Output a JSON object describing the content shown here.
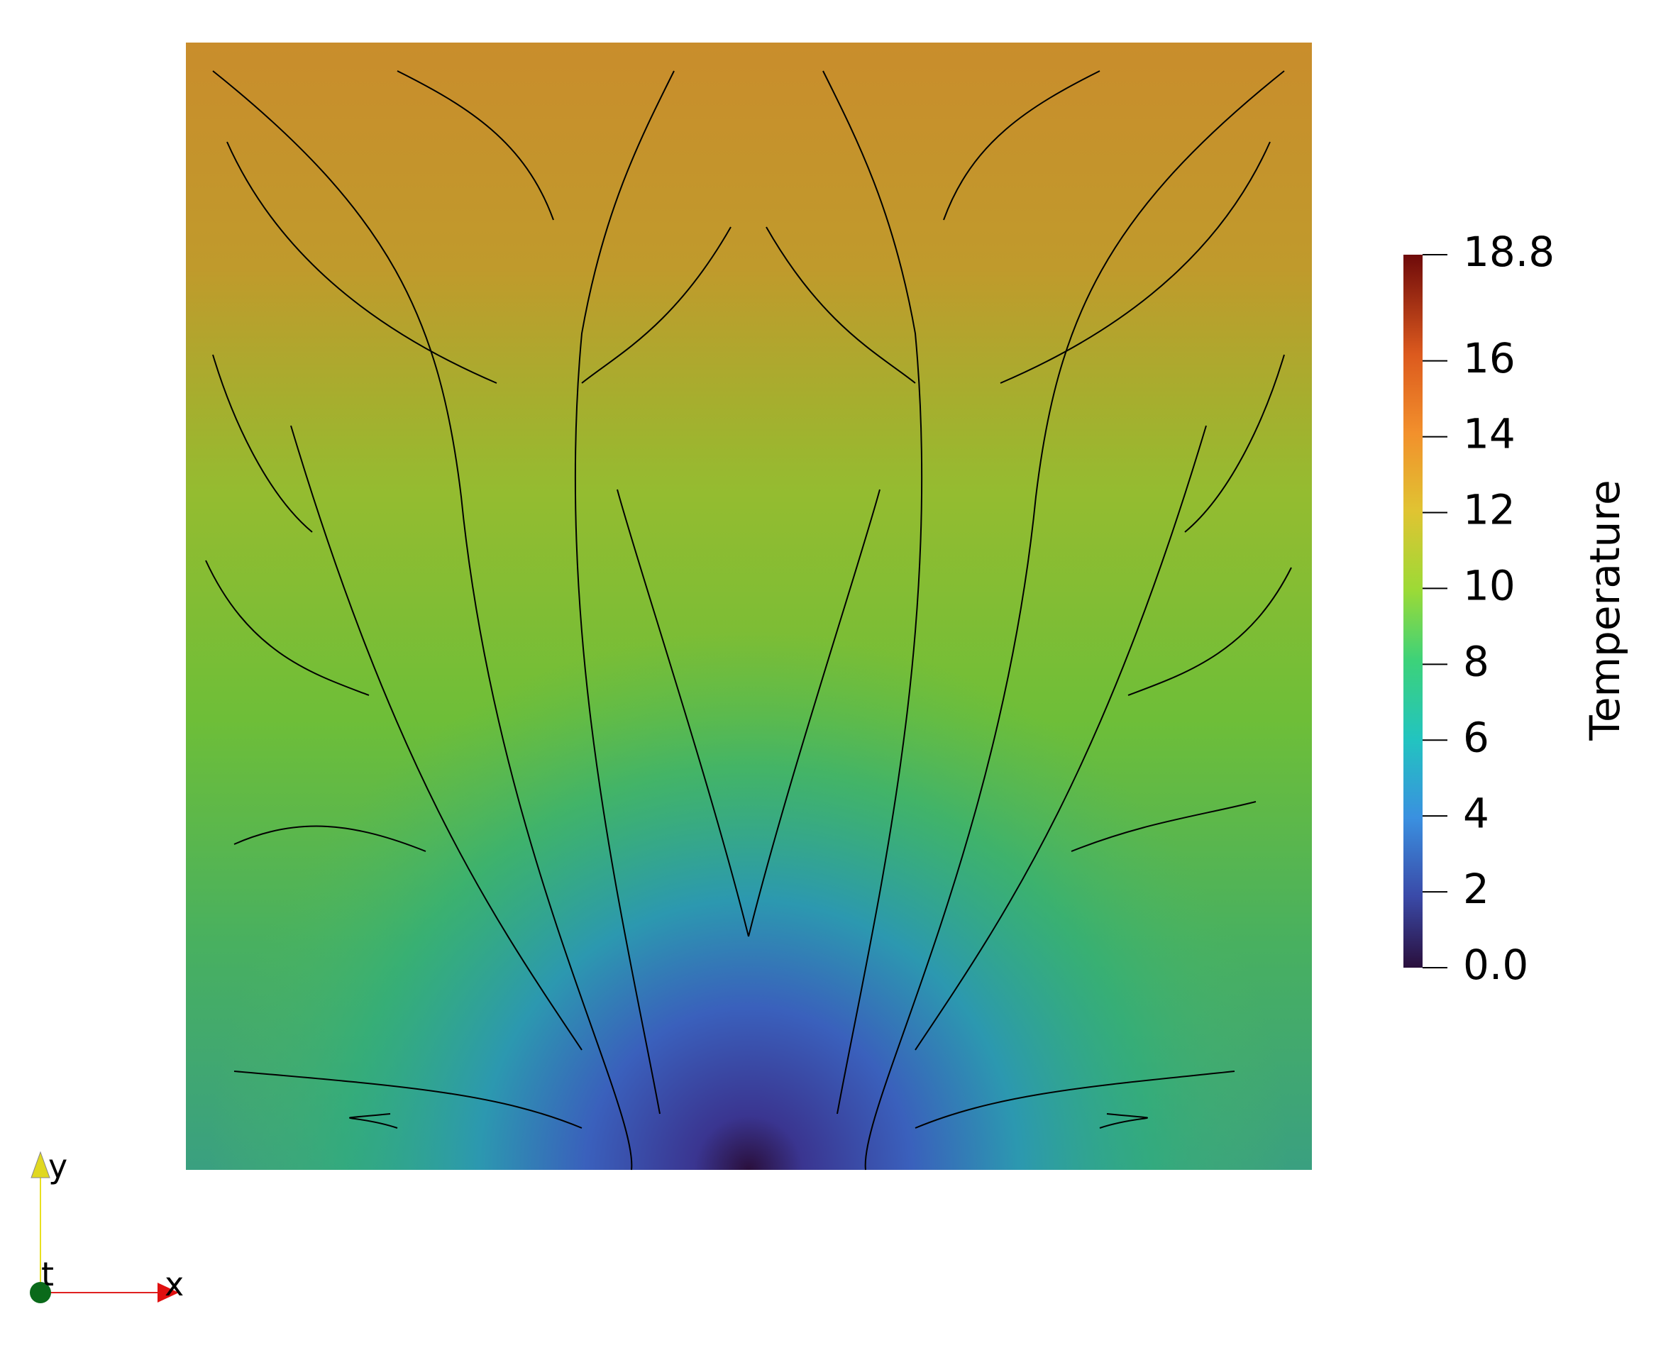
{
  "colorbar": {
    "title": "Temperature",
    "range": [
      0,
      18.8
    ],
    "ticks": [
      {
        "value": 18.8,
        "label": "18.8"
      },
      16,
      14,
      12,
      10,
      8,
      6,
      4,
      2,
      {
        "value": 0,
        "label": "0.0"
      }
    ]
  },
  "axes": {
    "y": "y",
    "x": "x",
    "t": "t"
  }
}
